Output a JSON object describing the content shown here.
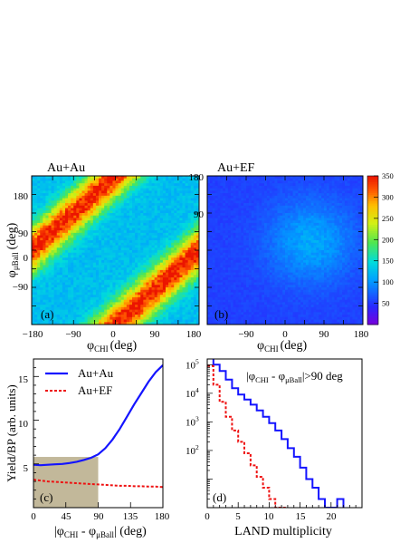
{
  "colors": {
    "au_au": "#1414ff",
    "au_ef": "#ee1111",
    "shade": "#c2b89a",
    "axis": "#000000"
  },
  "chart_data": [
    {
      "panel": "(a)",
      "type": "heatmap",
      "title": "Au+Au",
      "xlabel_main": "φ",
      "xlabel_sub": "CHI",
      "xlabel_unit": "(deg)",
      "ylabel_main": "φ",
      "ylabel_sub": "μBall",
      "ylabel_unit": "(deg)",
      "xlim": [
        -180,
        180
      ],
      "ylim": [
        -180,
        180
      ],
      "xticks": [
        "−180",
        "−90",
        "0",
        "90",
        "180"
      ],
      "yticks": [
        "−90",
        "0",
        "90",
        "180"
      ],
      "zlim": [
        0,
        350
      ],
      "description_values": {
        "band_offsets_deg": [
          -180,
          180
        ],
        "band_peak": 350,
        "background_min": 110,
        "background_max": 160
      }
    },
    {
      "panel": "(b)",
      "type": "heatmap",
      "title": "Au+EF",
      "xlabel_main": "φ",
      "xlabel_sub": "CHI",
      "xlabel_unit": "(deg)",
      "xlim": [
        -180,
        180
      ],
      "ylim": [
        -180,
        180
      ],
      "xticks": [
        "−90",
        "0",
        "90",
        "180"
      ],
      "zlim": [
        0,
        350
      ],
      "colorbar_ticks": [
        "50",
        "100",
        "150",
        "200",
        "250",
        "300",
        "350"
      ],
      "description_values": {
        "background_min": 40,
        "background_max": 110
      }
    },
    {
      "panel": "(c)",
      "type": "line",
      "xlabel_main": "|φ",
      "xlabel_sub1": "CHI",
      "xlabel_mid": " - φ",
      "xlabel_sub2": "μBall",
      "xlabel_unit": "| (deg)",
      "ylabel": "Yield/BP (arb. units)",
      "xlim": [
        0,
        180
      ],
      "ylim": [
        0,
        17
      ],
      "xticks": [
        "0",
        "45",
        "90",
        "135",
        "180"
      ],
      "yticks": [
        "5",
        "10",
        "15"
      ],
      "shaded_region_x": [
        0,
        90
      ],
      "legend": [
        "Au+Au",
        "Au+EF"
      ],
      "series": [
        {
          "name": "Au+Au",
          "x": [
            0,
            10,
            20,
            30,
            40,
            50,
            60,
            70,
            80,
            90,
            100,
            110,
            120,
            130,
            140,
            150,
            160,
            170,
            180
          ],
          "values": [
            4.9,
            4.85,
            4.9,
            4.95,
            5.0,
            5.1,
            5.25,
            5.45,
            5.7,
            6.1,
            6.8,
            7.8,
            9.0,
            10.4,
            11.8,
            13.1,
            14.4,
            15.5,
            16.3
          ]
        },
        {
          "name": "Au+EF",
          "x": [
            0,
            10,
            20,
            30,
            40,
            50,
            60,
            70,
            80,
            90,
            100,
            110,
            120,
            130,
            140,
            150,
            160,
            170,
            180
          ],
          "values": [
            3.2,
            3.1,
            3.0,
            2.95,
            2.9,
            2.85,
            2.8,
            2.75,
            2.7,
            2.65,
            2.6,
            2.55,
            2.5,
            2.5,
            2.45,
            2.45,
            2.4,
            2.4,
            2.35
          ]
        }
      ]
    },
    {
      "panel": "(d)",
      "type": "line",
      "annotation_main": "|φ",
      "annotation_sub1": "CHI",
      "annotation_mid": " - φ",
      "annotation_sub2": "μBall",
      "annotation_tail": "|>90 deg",
      "xlabel": "LAND multiplicity",
      "xlim": [
        0,
        25
      ],
      "ylim_log10": [
        0,
        5.2
      ],
      "xticks": [
        "0",
        "5",
        "10",
        "15",
        "20"
      ],
      "ytick_base": "10",
      "ytick_exponents": [
        "2",
        "3",
        "4",
        "5"
      ],
      "series": [
        {
          "name": "Au+Au",
          "x": [
            0,
            1,
            2,
            3,
            4,
            5,
            6,
            7,
            8,
            9,
            10,
            11,
            12,
            13,
            14,
            15,
            16,
            17,
            18,
            19,
            20,
            21,
            22
          ],
          "values": [
            200000,
            100000,
            60000,
            30000,
            15000,
            9000,
            6000,
            4000,
            2500,
            1500,
            900,
            500,
            250,
            120,
            60,
            25,
            10,
            5,
            2,
            1,
            1,
            2,
            1
          ]
        },
        {
          "name": "Au+EF",
          "x": [
            0,
            1,
            2,
            3,
            4,
            5,
            6,
            7,
            8,
            9,
            10,
            11,
            12,
            13
          ],
          "values": [
            90000,
            20000,
            5000,
            1500,
            500,
            200,
            80,
            30,
            12,
            5,
            2,
            1,
            1,
            1
          ]
        }
      ]
    }
  ]
}
